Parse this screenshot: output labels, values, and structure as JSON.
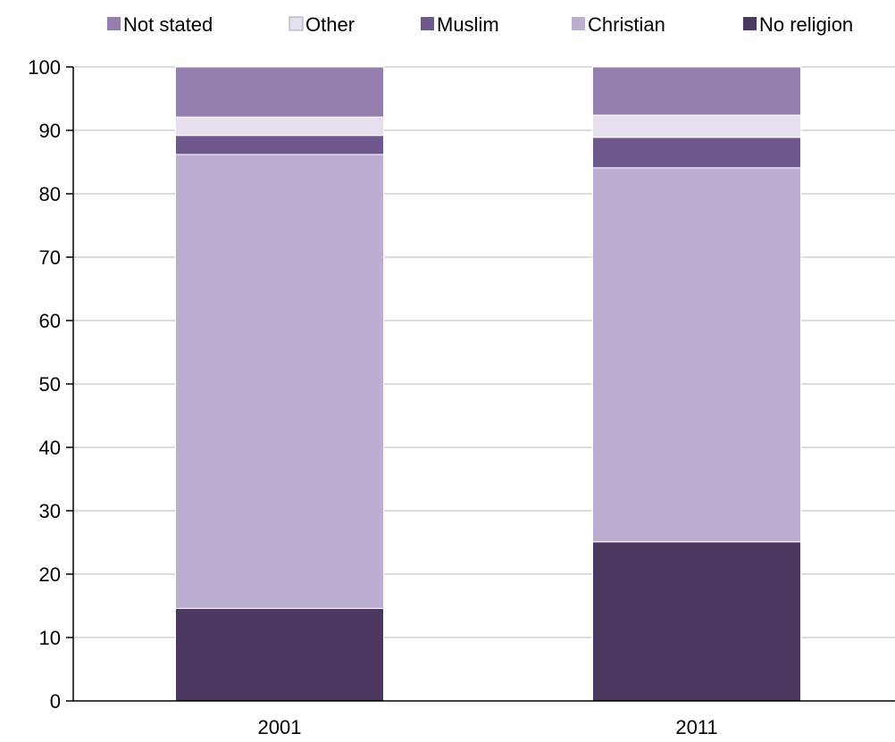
{
  "chart_data": {
    "type": "bar",
    "stacked": true,
    "title": "",
    "xlabel": "",
    "ylabel": "",
    "categories": [
      "2001",
      "2011"
    ],
    "ylim": [
      0,
      100
    ],
    "yticks": [
      0,
      10,
      20,
      30,
      40,
      50,
      60,
      70,
      80,
      90,
      100
    ],
    "grid": true,
    "legend_position": "top",
    "stack_order": [
      "No religion",
      "Christian",
      "Muslim",
      "Other",
      "Not stated"
    ],
    "series": [
      {
        "name": "No religion",
        "color": "#4b3860",
        "values": [
          14.6,
          25.1
        ]
      },
      {
        "name": "Christian",
        "color": "#bbaed0",
        "values": [
          71.6,
          59.0
        ]
      },
      {
        "name": "Muslim",
        "color": "#6f588e",
        "values": [
          3.0,
          4.8
        ]
      },
      {
        "name": "Other",
        "color": "#e6e0ee",
        "values": [
          2.9,
          3.5
        ]
      },
      {
        "name": "Not stated",
        "color": "#957fb0",
        "values": [
          7.9,
          7.6
        ]
      }
    ],
    "legend_order": [
      "Not stated",
      "Other",
      "Muslim",
      "Christian",
      "No religion"
    ]
  }
}
